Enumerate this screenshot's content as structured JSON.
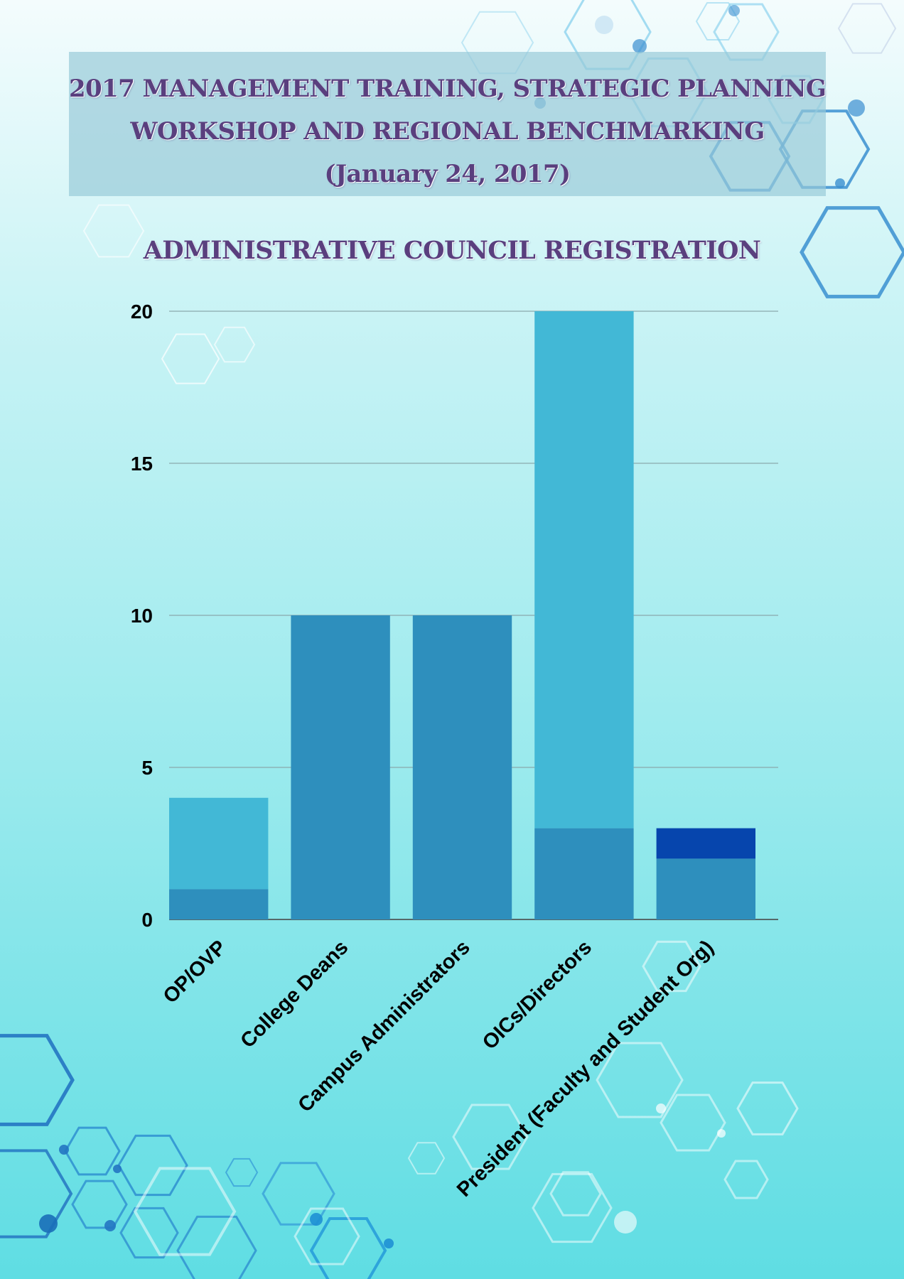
{
  "header": {
    "title_line1": "2017 MANAGEMENT TRAINING, STRATEGIC PLANNING",
    "title_line2": "WORKSHOP AND REGIONAL BENCHMARKING",
    "title_line3": "(January 24, 2017)"
  },
  "chart_data": {
    "type": "bar",
    "stacked": true,
    "title": "ADMINISTRATIVE COUNCIL REGISTRATION",
    "categories": [
      "OP/OVP",
      "College Deans",
      "Campus Administrators",
      "OICs/Directors",
      "President (Faculty and Student Org)"
    ],
    "series": [
      {
        "values": [
          1,
          10,
          10,
          3,
          2
        ],
        "color": "#2e8fbd"
      },
      {
        "values": [
          3,
          0,
          0,
          17,
          0
        ],
        "color": "#42b8d6"
      },
      {
        "values": [
          0,
          0,
          0,
          0,
          1
        ],
        "color": "#0645ad"
      }
    ],
    "yticks": [
      0,
      5,
      10,
      15,
      20
    ],
    "ylim": [
      0,
      20
    ],
    "grid": true,
    "legend": "none"
  }
}
